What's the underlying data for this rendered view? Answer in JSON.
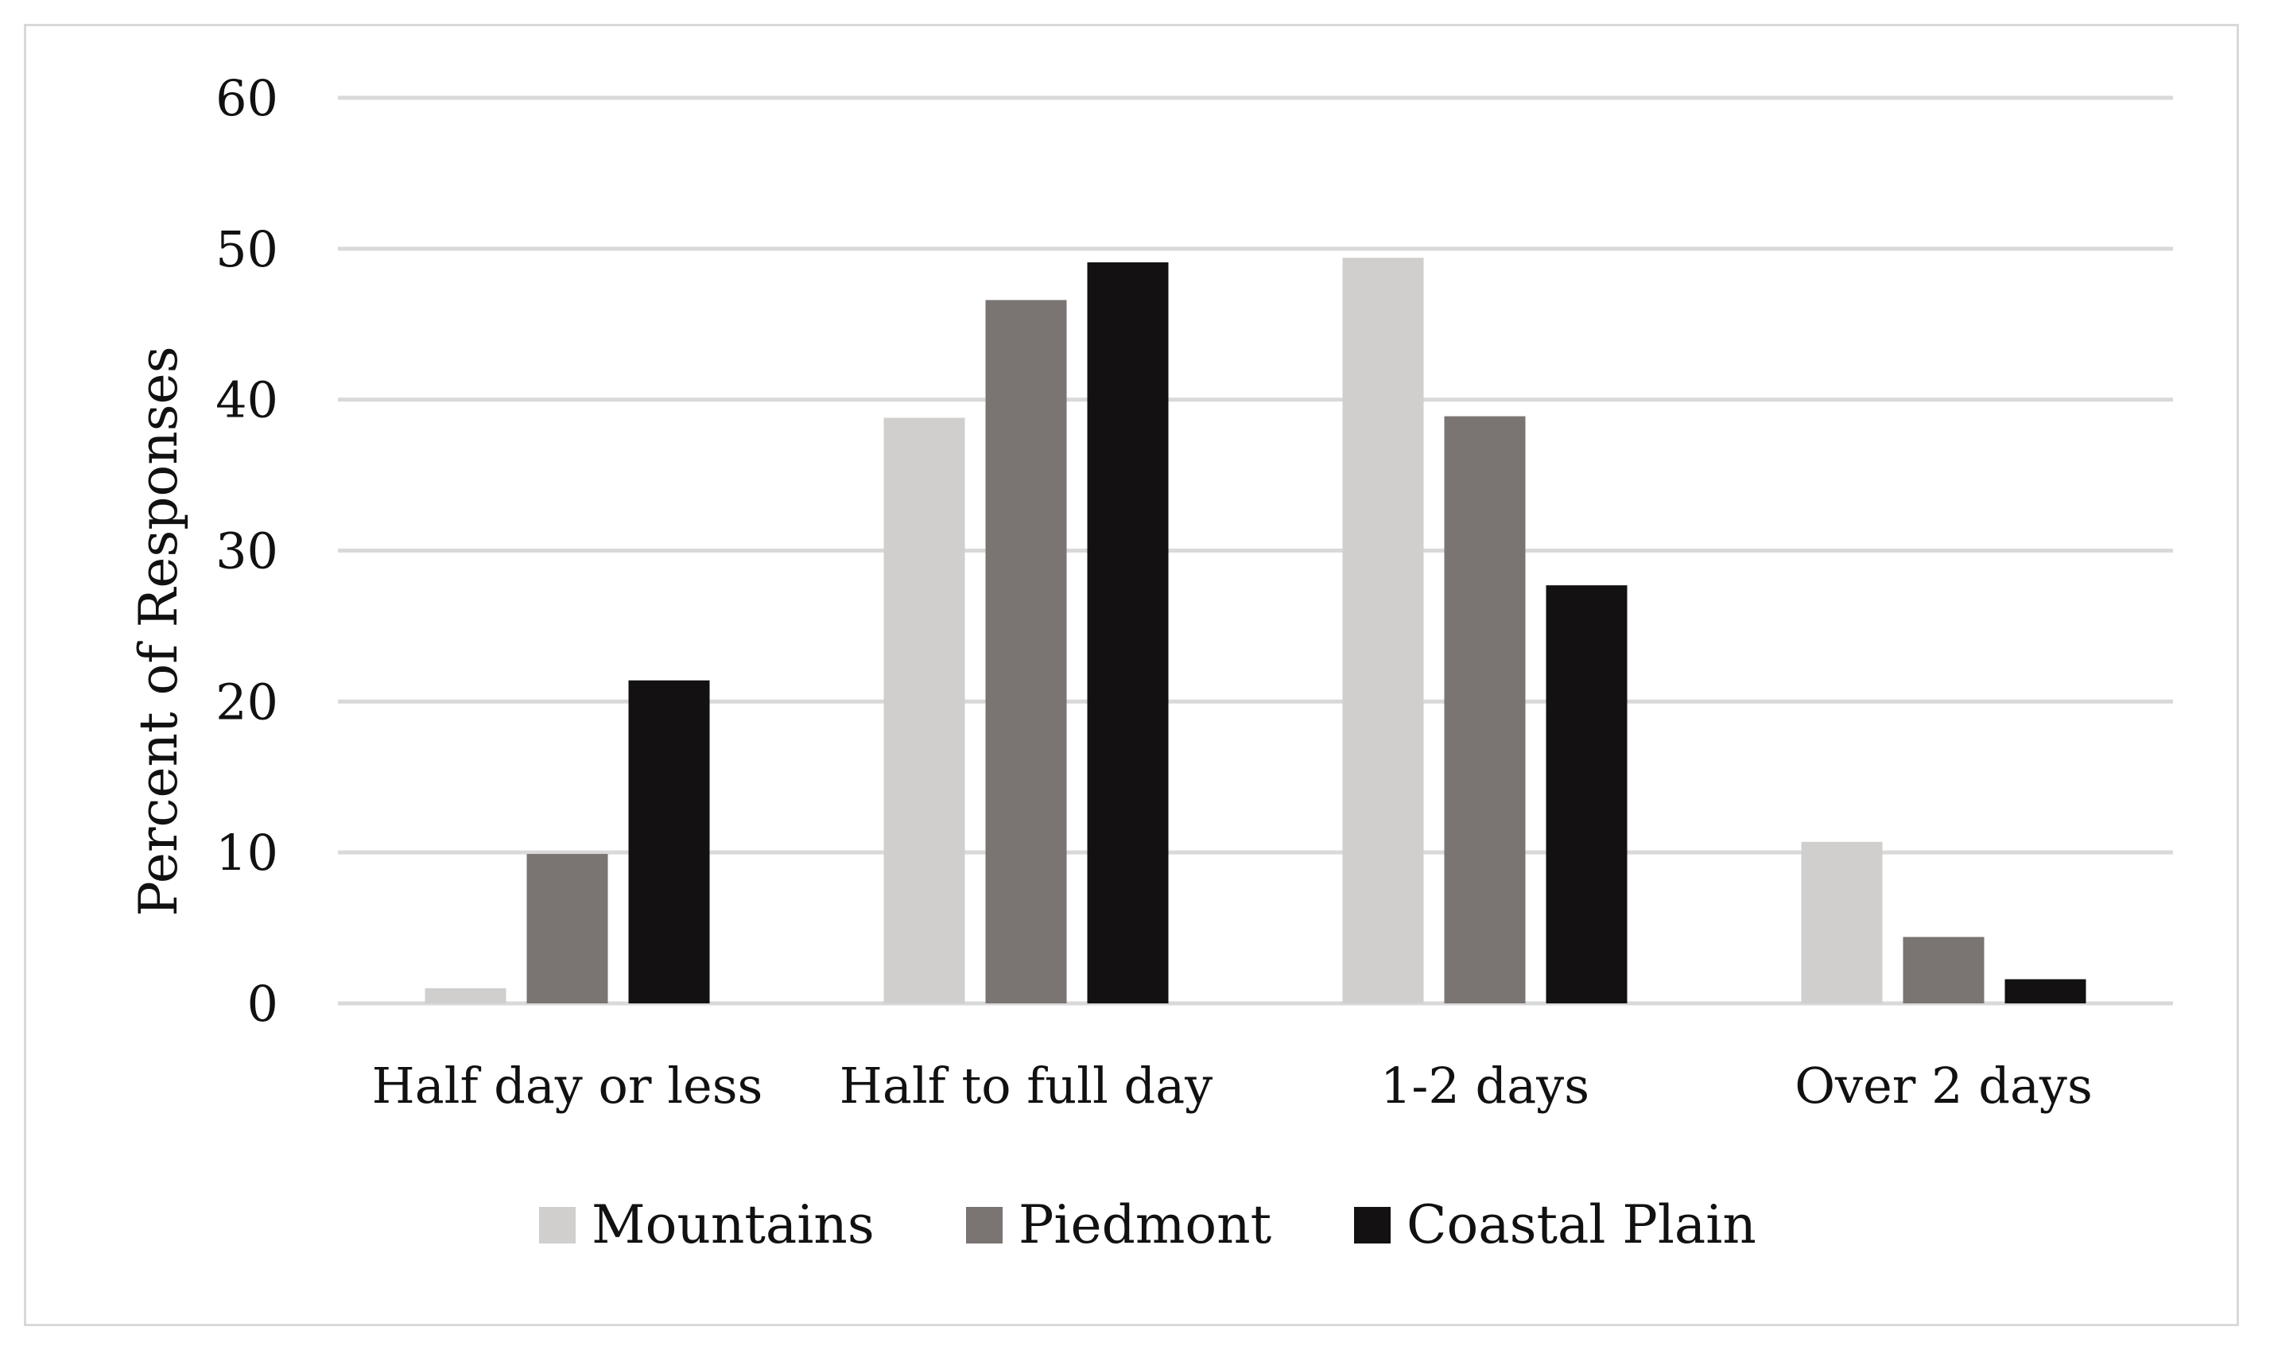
{
  "chart_data": {
    "type": "bar",
    "title": "",
    "xlabel": "",
    "ylabel": "Percent of Responses",
    "ylim": [
      0,
      60
    ],
    "yticks": [
      0,
      10,
      20,
      30,
      40,
      50,
      60
    ],
    "grid": true,
    "legend_position": "bottom",
    "categories": [
      "Half day or less",
      "Half to full day",
      "1-2 days",
      "Over 2 days"
    ],
    "series": [
      {
        "name": "Mountains",
        "color": "#d0cfcd",
        "values": [
          1.0,
          38.8,
          49.4,
          10.7
        ]
      },
      {
        "name": "Piedmont",
        "color": "#7a7473",
        "values": [
          9.9,
          46.6,
          38.9,
          4.4
        ]
      },
      {
        "name": "Coastal Plain",
        "color": "#131112",
        "values": [
          21.4,
          49.1,
          27.7,
          1.6
        ]
      }
    ]
  }
}
